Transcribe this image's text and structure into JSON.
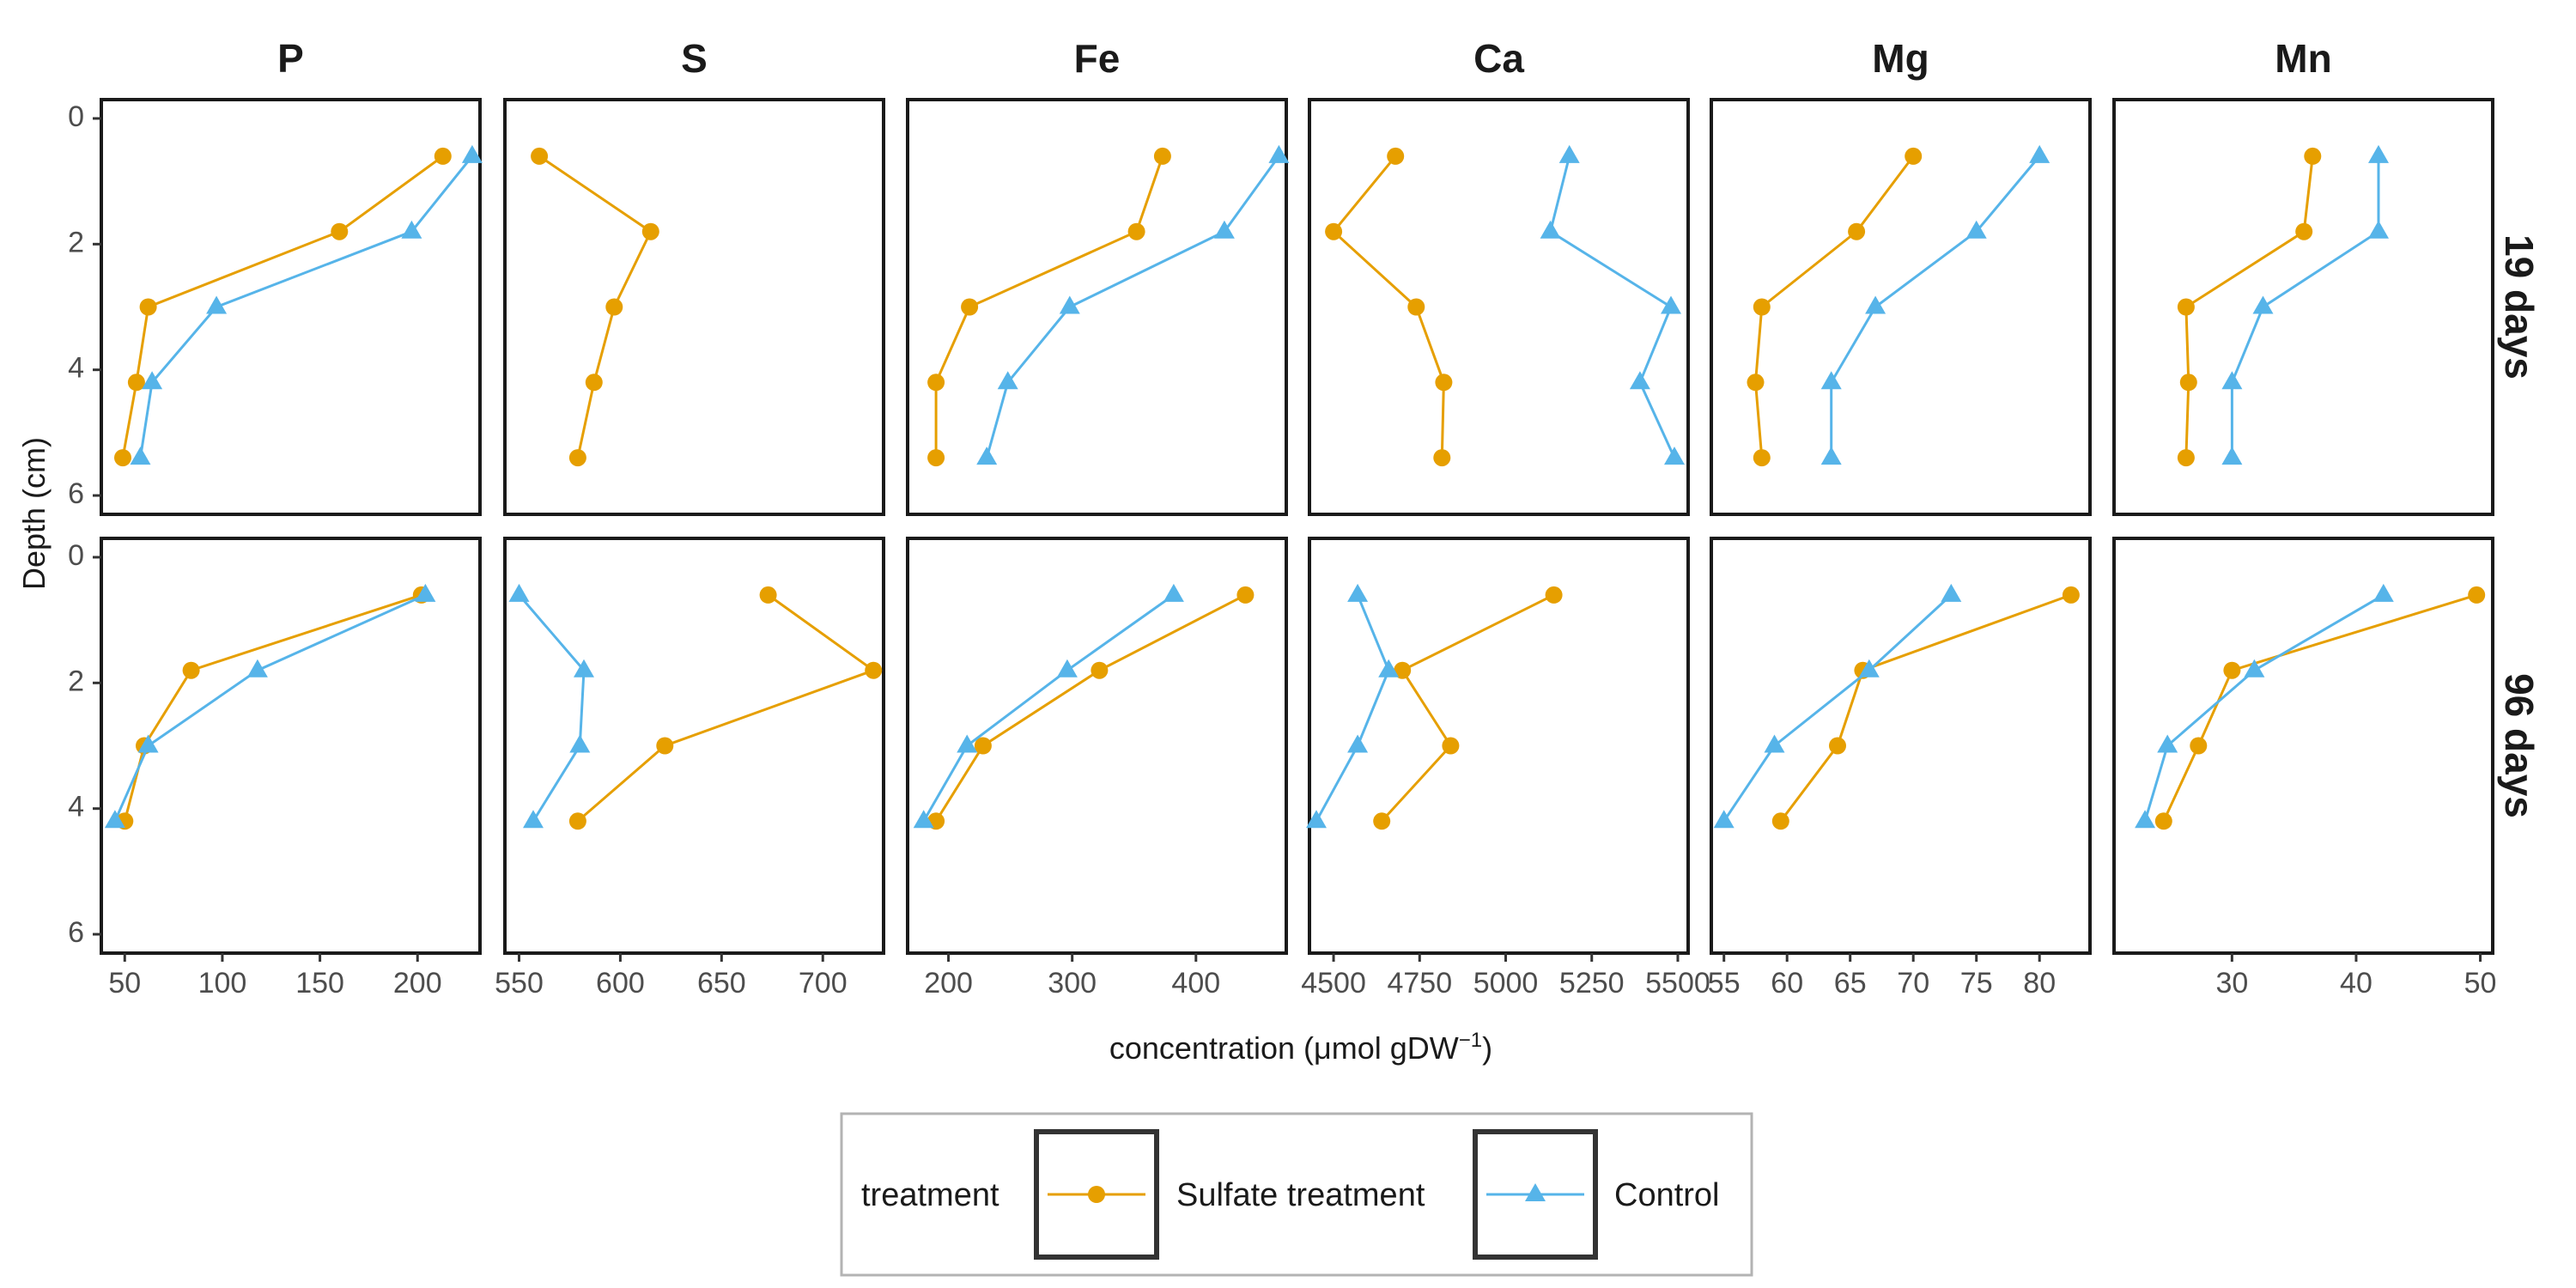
{
  "chart_data": {
    "type": "line",
    "xlabel_prefix": "concentration (",
    "xlabel_unit": "μmol gDW",
    "xlabel_sup": "−1",
    "xlabel_suffix": ")",
    "ylabel": "Depth (cm)",
    "y_reversed": true,
    "ylim": [
      6.3,
      -0.3
    ],
    "y_ticks": [
      0,
      2,
      4,
      6
    ],
    "grid": false,
    "legend": {
      "position": "bottom",
      "title": "treatment",
      "entries": [
        {
          "key": "sulfate",
          "label": "Sulfate treatment",
          "color": "#E69F00",
          "marker": "circle"
        },
        {
          "key": "control",
          "label": "Control",
          "color": "#56B4E9",
          "marker": "triangle"
        }
      ]
    },
    "rows": [
      {
        "label": "19 days",
        "depths": [
          0.6,
          1.8,
          3.0,
          4.2,
          5.4
        ]
      },
      {
        "label": "96 days",
        "depths": [
          0.6,
          1.8,
          3.0,
          4.2
        ]
      }
    ],
    "panels": [
      {
        "element": "P",
        "xlim": [
          38,
          232
        ],
        "ticks": [
          50,
          100,
          150,
          200
        ],
        "rows": [
          {
            "sulfate": [
              213,
              160,
              62,
              56,
              49
            ],
            "control": [
              228,
              197,
              97,
              64,
              58
            ]
          },
          {
            "sulfate": [
              202,
              84,
              60,
              50
            ],
            "control": [
              204,
              118,
              62,
              45
            ]
          }
        ]
      },
      {
        "element": "S",
        "xlim": [
          543,
          730
        ],
        "ticks": [
          550,
          600,
          650,
          700
        ],
        "rows": [
          {
            "sulfate": [
              560,
              615,
              597,
              587,
              579
            ],
            "control": []
          },
          {
            "sulfate": [
              673,
              725,
              622,
              579
            ],
            "control": [
              550,
              582,
              580,
              557
            ]
          }
        ]
      },
      {
        "element": "Fe",
        "xlim": [
          167,
          473
        ],
        "ticks": [
          200,
          300,
          400
        ],
        "rows": [
          {
            "sulfate": [
              373,
              352,
              217,
              190,
              190
            ],
            "control": [
              467,
              423,
              298,
              248,
              231
            ]
          },
          {
            "sulfate": [
              440,
              322,
              228,
              190
            ],
            "control": [
              382,
              296,
              215,
              180
            ]
          }
        ]
      },
      {
        "element": "Ca",
        "xlim": [
          4430,
          5530
        ],
        "ticks": [
          4500,
          4750,
          5000,
          5250,
          5500
        ],
        "rows": [
          {
            "sulfate": [
              4680,
              4500,
              4740,
              4820,
              4815
            ],
            "control": [
              5185,
              5130,
              5480,
              5390,
              5490
            ]
          },
          {
            "sulfate": [
              5140,
              4700,
              4840,
              4640
            ],
            "control": [
              4570,
              4660,
              4570,
              4450
            ]
          }
        ]
      },
      {
        "element": "Mg",
        "xlim": [
          54,
          84
        ],
        "ticks": [
          55,
          60,
          65,
          70,
          75,
          80
        ],
        "rows": [
          {
            "sulfate": [
              70,
              65.5,
              58,
              57.5,
              58
            ],
            "control": [
              80,
              75,
              67,
              63.5,
              63.5
            ]
          },
          {
            "sulfate": [
              82.5,
              66,
              64,
              59.5
            ],
            "control": [
              73,
              66.5,
              59,
              55
            ]
          }
        ]
      },
      {
        "element": "Mn",
        "xlim": [
          20.5,
          51
        ],
        "ticks": [
          30,
          40,
          50
        ],
        "rows": [
          {
            "sulfate": [
              36.5,
              35.8,
              26.3,
              26.5,
              26.3
            ],
            "control": [
              41.8,
              41.8,
              32.5,
              30,
              30
            ]
          },
          {
            "sulfate": [
              49.7,
              30,
              27.3,
              24.5
            ],
            "control": [
              42.2,
              31.8,
              24.8,
              23
            ]
          }
        ]
      }
    ]
  }
}
